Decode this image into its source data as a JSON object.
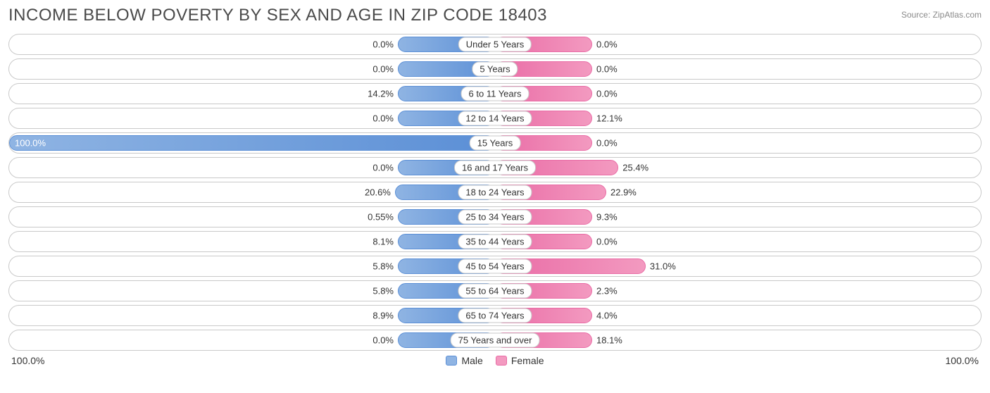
{
  "title": "INCOME BELOW POVERTY BY SEX AND AGE IN ZIP CODE 18403",
  "source": "Source: ZipAtlas.com",
  "axis_max_label": "100.0%",
  "legend": {
    "male": "Male",
    "female": "Female"
  },
  "colors": {
    "male_fill": "#8fb4e3",
    "male_border": "#5b8fd6",
    "female_fill": "#f39ac0",
    "female_border": "#e96ba5",
    "row_border": "#c9c9c9",
    "text": "#333333",
    "title": "#4a4a4a",
    "bg": "#ffffff"
  },
  "scale": {
    "max": 100.0
  },
  "min_bar_pct": 10.0,
  "rows": [
    {
      "category": "Under 5 Years",
      "male": 0.0,
      "female": 0.0,
      "male_label": "0.0%",
      "female_label": "0.0%"
    },
    {
      "category": "5 Years",
      "male": 0.0,
      "female": 0.0,
      "male_label": "0.0%",
      "female_label": "0.0%"
    },
    {
      "category": "6 to 11 Years",
      "male": 14.2,
      "female": 0.0,
      "male_label": "14.2%",
      "female_label": "0.0%"
    },
    {
      "category": "12 to 14 Years",
      "male": 0.0,
      "female": 12.1,
      "male_label": "0.0%",
      "female_label": "12.1%"
    },
    {
      "category": "15 Years",
      "male": 100.0,
      "female": 0.0,
      "male_label": "100.0%",
      "female_label": "0.0%"
    },
    {
      "category": "16 and 17 Years",
      "male": 0.0,
      "female": 25.4,
      "male_label": "0.0%",
      "female_label": "25.4%"
    },
    {
      "category": "18 to 24 Years",
      "male": 20.6,
      "female": 22.9,
      "male_label": "20.6%",
      "female_label": "22.9%"
    },
    {
      "category": "25 to 34 Years",
      "male": 0.55,
      "female": 9.3,
      "male_label": "0.55%",
      "female_label": "9.3%"
    },
    {
      "category": "35 to 44 Years",
      "male": 8.1,
      "female": 0.0,
      "male_label": "8.1%",
      "female_label": "0.0%"
    },
    {
      "category": "45 to 54 Years",
      "male": 5.8,
      "female": 31.0,
      "male_label": "5.8%",
      "female_label": "31.0%"
    },
    {
      "category": "55 to 64 Years",
      "male": 5.8,
      "female": 2.3,
      "male_label": "5.8%",
      "female_label": "2.3%"
    },
    {
      "category": "65 to 74 Years",
      "male": 8.9,
      "female": 4.0,
      "male_label": "8.9%",
      "female_label": "4.0%"
    },
    {
      "category": "75 Years and over",
      "male": 0.0,
      "female": 18.1,
      "male_label": "0.0%",
      "female_label": "18.1%"
    }
  ]
}
